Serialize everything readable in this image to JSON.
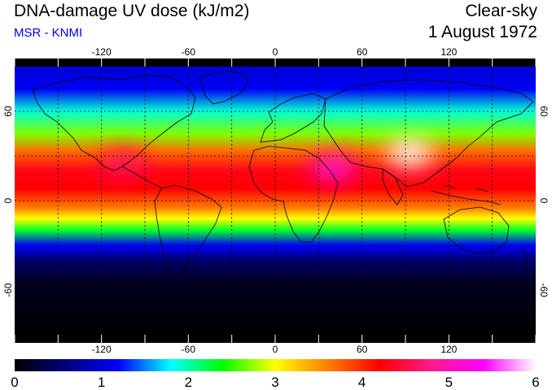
{
  "header": {
    "title": "DNA-damage UV dose (kJ/m2)",
    "subtitle": "MSR - KNMI",
    "sky": "Clear-sky",
    "date": "1 August 1972"
  },
  "map": {
    "lon_range": [
      -180,
      180
    ],
    "lat_range": [
      -90,
      90
    ],
    "lon_ticks": [
      -120,
      -60,
      0,
      60,
      120
    ],
    "lat_ticks": [
      60,
      0,
      -60
    ],
    "lon_tick_labels": [
      "-120",
      "-60",
      "0",
      "60",
      "120"
    ],
    "lat_tick_labels": [
      "60",
      "0",
      "-60"
    ],
    "grid_dashed_lons": [
      -150,
      -120,
      -90,
      -60,
      -30,
      0,
      30,
      60,
      90,
      120,
      150
    ],
    "grid_dashed_lats": [
      60,
      30,
      0,
      -30
    ],
    "field_bands": [
      {
        "lat": 90,
        "value": 1.0
      },
      {
        "lat": 75,
        "value": 1.15
      },
      {
        "lat": 60,
        "value": 1.9
      },
      {
        "lat": 45,
        "value": 2.7
      },
      {
        "lat": 33,
        "value": 3.7
      },
      {
        "lat": 20,
        "value": 4.3
      },
      {
        "lat": 8,
        "value": 4.2
      },
      {
        "lat": -5,
        "value": 3.6
      },
      {
        "lat": -12,
        "value": 3.0
      },
      {
        "lat": -20,
        "value": 2.3
      },
      {
        "lat": -30,
        "value": 1.2
      },
      {
        "lat": -40,
        "value": 0.5
      },
      {
        "lat": -55,
        "value": 0.15
      },
      {
        "lat": -90,
        "value": 0.0
      }
    ],
    "hotspots": [
      {
        "lon": 93,
        "lat": 32,
        "value": 6.0
      },
      {
        "lon": 40,
        "lat": 22,
        "value": 5.2
      },
      {
        "lon": -105,
        "lat": 25,
        "value": 4.6
      }
    ]
  },
  "colorbar": {
    "min": 0,
    "max": 6,
    "tick_labels": [
      "0",
      "1",
      "2",
      "3",
      "4",
      "5",
      "6"
    ],
    "colors": [
      "#000000",
      "#000080",
      "#0000ff",
      "#00ffff",
      "#00ff00",
      "#ffff00",
      "#ff8000",
      "#ff0000",
      "#ff1a8c",
      "#ff00ff",
      "#ffffff"
    ]
  }
}
